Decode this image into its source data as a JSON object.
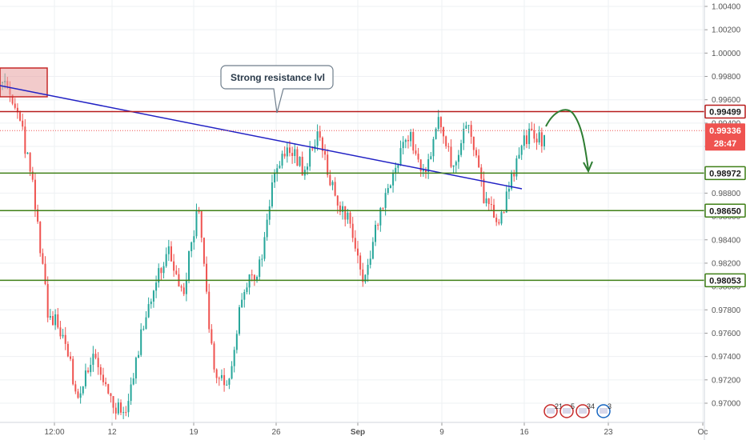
{
  "chart_data": {
    "type": "candlestick",
    "y_axis": {
      "ticks": [
        "1.00400",
        "1.00200",
        "1.00000",
        "0.99800",
        "0.99600",
        "0.99400",
        "0.99200",
        "0.99000",
        "0.98800",
        "0.98600",
        "0.98400",
        "0.98200",
        "0.98000",
        "0.97800",
        "0.97600",
        "0.97400",
        "0.97200",
        "0.97000"
      ],
      "range": [
        0.9686,
        1.0049
      ],
      "position": "right"
    },
    "x_axis": {
      "ticks": [
        "12:00",
        "12",
        "19",
        "26",
        "Sep",
        "9",
        "16",
        "23",
        "Oc"
      ]
    },
    "horizontal_levels": [
      {
        "price": 0.99499,
        "label": "0.99499",
        "color": "#b71c1c",
        "style": "solid"
      },
      {
        "price": 0.98972,
        "label": "0.98972",
        "color": "#3f7f16",
        "style": "solid"
      },
      {
        "price": 0.9865,
        "label": "0.98650",
        "color": "#3f7f16",
        "style": "solid"
      },
      {
        "price": 0.98053,
        "label": "0.98053",
        "color": "#3f7f16",
        "style": "solid"
      }
    ],
    "current_price": {
      "price": 0.99336,
      "label": "0.99336",
      "countdown": "28:47",
      "color": "#ef5350"
    },
    "annotation": {
      "text": "Strong resistance lvl"
    },
    "trendline_color": "#2121c4",
    "candle_colors": {
      "up": "#26a69a",
      "down": "#ef5350"
    },
    "key_prices": [
      0.9975,
      0.9952,
      0.989,
      0.978,
      0.976,
      0.9705,
      0.974,
      0.9712,
      0.9686,
      0.9745,
      0.98,
      0.983,
      0.9795,
      0.987,
      0.973,
      0.9715,
      0.98,
      0.981,
      0.989,
      0.992,
      0.99,
      0.993,
      0.988,
      0.9855,
      0.9805,
      0.986,
      0.99,
      0.993,
      0.9895,
      0.9945,
      0.99,
      0.9945,
      0.9875,
      0.9855,
      0.99,
      0.9935,
      0.9925
    ]
  },
  "events": [
    {
      "label": "21",
      "color": "#c62828"
    },
    {
      "label": "5",
      "color": "#c62828"
    },
    {
      "label": "34",
      "color": "#c62828"
    },
    {
      "label": "3",
      "color": "#1565c0"
    }
  ],
  "colors": {
    "grid": "#eef0f3",
    "axis_border": "#d1d4dc",
    "resistance_box": "#e8a0a0"
  }
}
